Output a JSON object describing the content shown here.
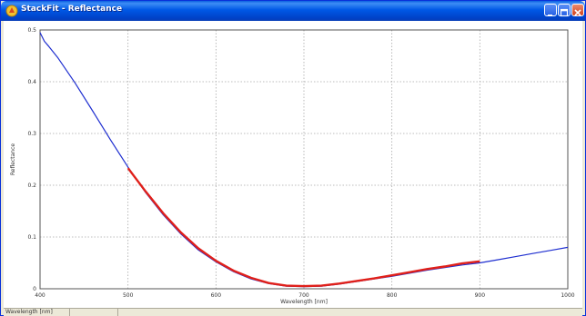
{
  "window": {
    "title": "StackFit - Reflectance",
    "minimize_label": "_",
    "maximize_label": "□",
    "close_label": "×"
  },
  "colors": {
    "model_curve": "#1f2fd0",
    "fit_curve": "#e0201a",
    "grid": "#a8a8a8",
    "titlebar": "#0058e6",
    "close_button": "#d2431c"
  },
  "status": {
    "pane1": "Wavelength [nm]",
    "pane2": ""
  },
  "chart_data": {
    "type": "line",
    "title": "",
    "xlabel": "Wavelength [nm]",
    "ylabel": "Reflectance",
    "xlim": [
      400,
      1000
    ],
    "ylim": [
      0,
      0.5
    ],
    "xticks": [
      400,
      500,
      600,
      700,
      800,
      900,
      1000
    ],
    "yticks": [
      0,
      0.1,
      0.2,
      0.3,
      0.4,
      0.5
    ],
    "xtick_labels": [
      "400",
      "500",
      "600",
      "700",
      "800",
      "900",
      "1000"
    ],
    "ytick_labels": [
      "0",
      "0.1",
      "0.2",
      "0.3",
      "0.4",
      "0.5"
    ],
    "grid": true,
    "legend": "none",
    "series": [
      {
        "x": [
          400,
          405,
          410,
          420,
          440,
          460,
          480,
          500,
          520,
          540,
          560,
          580,
          600,
          620,
          640,
          660,
          680,
          700,
          720,
          740,
          760,
          780,
          800,
          820,
          840,
          860,
          880,
          900,
          920,
          940,
          960,
          980,
          1000
        ],
        "y": [
          0.495,
          0.478,
          0.468,
          0.447,
          0.397,
          0.343,
          0.288,
          0.235,
          0.186,
          0.143,
          0.106,
          0.075,
          0.052,
          0.033,
          0.019,
          0.01,
          0.005,
          0.004,
          0.005,
          0.009,
          0.014,
          0.019,
          0.024,
          0.03,
          0.036,
          0.041,
          0.046,
          0.05,
          0.056,
          0.062,
          0.068,
          0.074,
          0.08
        ],
        "color": "#1f2fd0"
      },
      {
        "x": [
          500,
          520,
          540,
          560,
          580,
          600,
          620,
          640,
          660,
          680,
          700,
          720,
          740,
          760,
          780,
          800,
          820,
          840,
          860,
          880,
          900
        ],
        "y": [
          0.233,
          0.188,
          0.146,
          0.109,
          0.078,
          0.054,
          0.035,
          0.021,
          0.011,
          0.006,
          0.005,
          0.006,
          0.01,
          0.015,
          0.02,
          0.026,
          0.032,
          0.038,
          0.043,
          0.049,
          0.053
        ],
        "color": "#e0201a"
      }
    ]
  }
}
